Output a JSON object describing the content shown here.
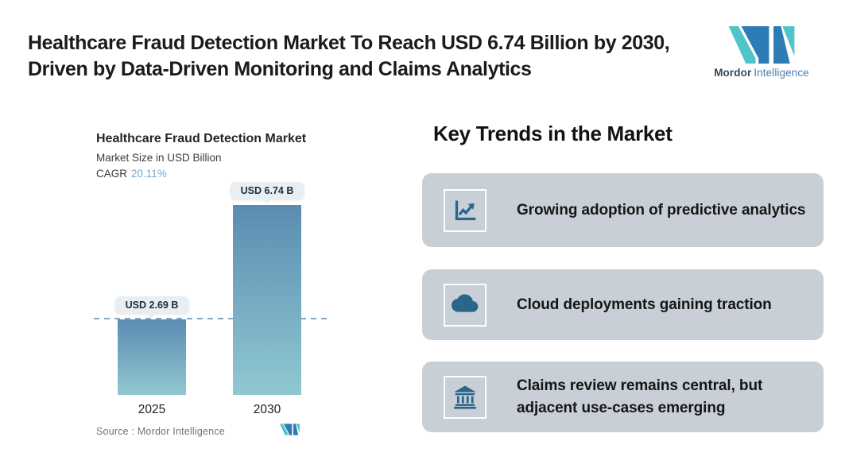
{
  "header": {
    "title_line1": "Healthcare Fraud Detection Market To Reach USD 6.74 Billion by 2030,",
    "title_line2": "Driven by Data-Driven Monitoring and Claims Analytics",
    "brand": {
      "bold": "Mordor",
      "regular": "Intelligence"
    }
  },
  "chart": {
    "title": "Healthcare Fraud Detection Market",
    "subtitle": "Market Size in USD Billion",
    "cagr_label": "CAGR",
    "cagr_value": "20.11%",
    "source": "Source :  Mordor Intelligence"
  },
  "chart_data": {
    "type": "bar",
    "title": "Healthcare Fraud Detection Market",
    "ylabel": "Market Size in USD Billion",
    "cagr_percent": 20.11,
    "categories": [
      "2025",
      "2030"
    ],
    "values": [
      2.69,
      6.74
    ],
    "value_labels": [
      "USD 2.69 B",
      "USD 6.74 B"
    ],
    "reference_line": 2.69,
    "ylim": [
      0,
      6.74
    ],
    "grid": false,
    "legend": false
  },
  "trends": {
    "heading": "Key Trends in the Market",
    "cards": [
      {
        "icon": "trend-chart-icon",
        "text": "Growing adoption of predictive analytics"
      },
      {
        "icon": "cloud-icon",
        "text": "Cloud deployments gaining traction"
      },
      {
        "icon": "bank-icon",
        "text": "Claims review remains central, but adjacent use-cases emerging"
      }
    ]
  },
  "colors": {
    "accent_teal": "#4FC4C9",
    "accent_blue": "#2D7CB5",
    "icon_blue": "#2A658A",
    "bar_top": "#5B8CB2",
    "bar_bottom": "#90C8D1",
    "card_bg": "#C9CFD6",
    "badge_bg": "#E9EEF2",
    "dash_line": "#7EA9CC",
    "cagr_value": "#74A9CE"
  }
}
